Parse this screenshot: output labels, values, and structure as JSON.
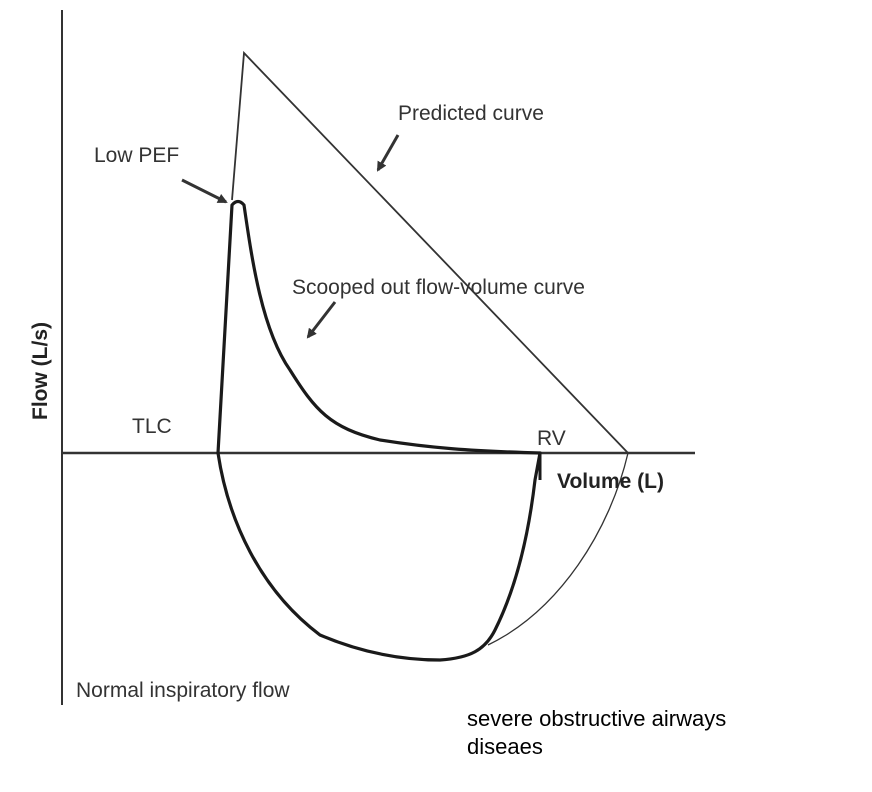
{
  "labels": {
    "predicted_curve": "Predicted curve",
    "low_pef": "Low PEF",
    "scooped_curve": "Scooped out flow-volume curve",
    "tlc": "TLC",
    "rv": "RV",
    "y_axis": "Flow (L/s)",
    "x_axis": "Volume (L)",
    "normal_inspiratory": "Normal inspiratory flow"
  },
  "caption": {
    "line1": "severe obstructive airways",
    "line2": "diseaes"
  },
  "colors": {
    "axis": "#333333",
    "curve": "#1a1a1a",
    "predicted": "#333333",
    "background": "#ffffff"
  }
}
